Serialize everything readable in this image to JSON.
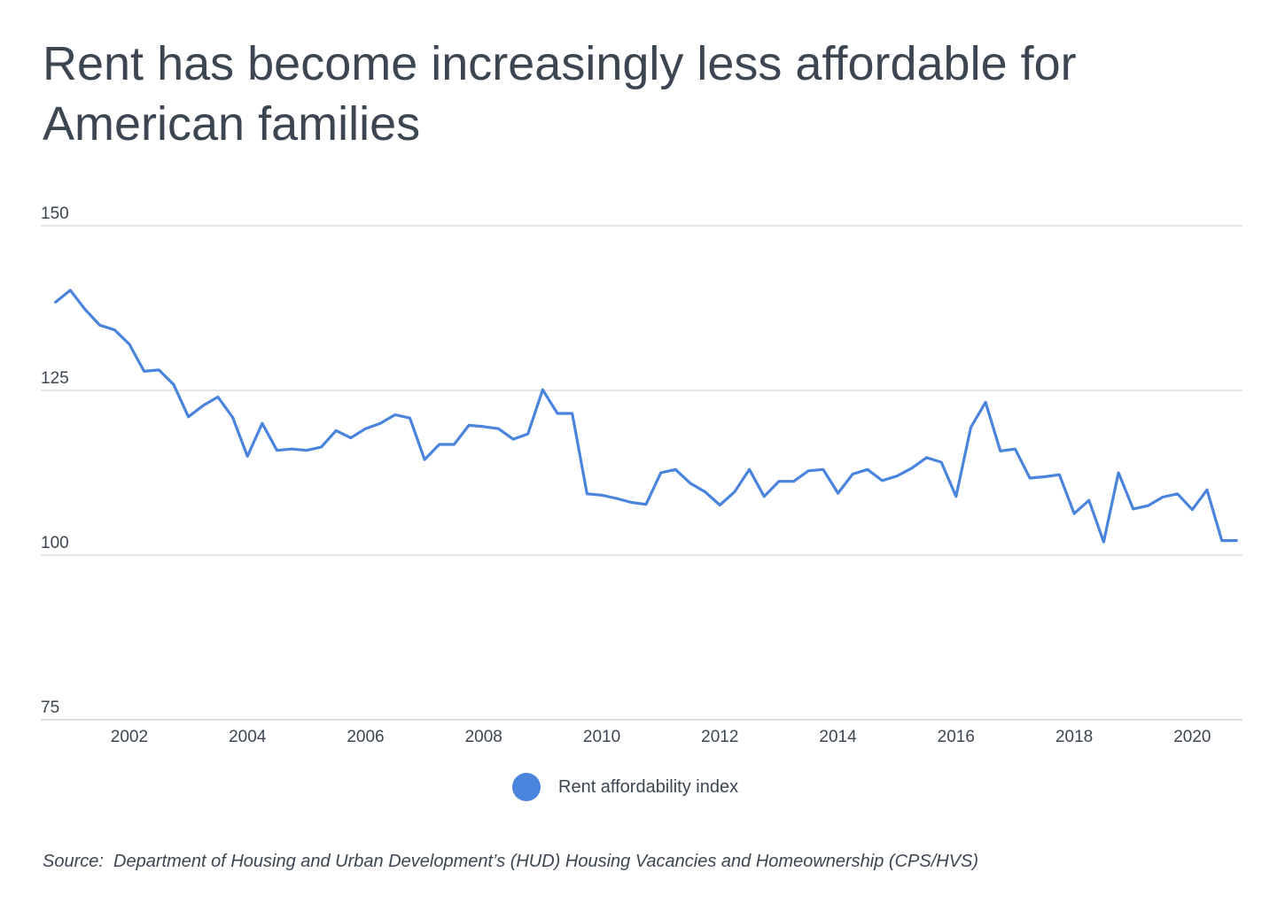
{
  "chart_data": {
    "type": "line",
    "title": "Rent has become increasingly less affordable for American families",
    "xlabel": "",
    "ylabel": "",
    "ylim": [
      75,
      150
    ],
    "yticks": [
      75,
      100,
      125,
      150
    ],
    "xticks": [
      2002,
      2004,
      2006,
      2008,
      2010,
      2012,
      2014,
      2016,
      2018,
      2020
    ],
    "xlim": [
      2000.5,
      2020.85
    ],
    "grid": true,
    "legend_position": "bottom",
    "series": [
      {
        "name": "Rent affordability index",
        "color": "#4a84dc",
        "x": [
          2000.75,
          2001.0,
          2001.25,
          2001.5,
          2001.75,
          2002.0,
          2002.25,
          2002.5,
          2002.75,
          2003.0,
          2003.25,
          2003.5,
          2003.75,
          2004.0,
          2004.25,
          2004.5,
          2004.75,
          2005.0,
          2005.25,
          2005.5,
          2005.75,
          2006.0,
          2006.25,
          2006.5,
          2006.75,
          2007.0,
          2007.25,
          2007.5,
          2007.75,
          2008.0,
          2008.25,
          2008.5,
          2008.75,
          2009.0,
          2009.25,
          2009.5,
          2009.75,
          2010.0,
          2010.25,
          2010.5,
          2010.75,
          2011.0,
          2011.25,
          2011.5,
          2011.75,
          2012.0,
          2012.25,
          2012.5,
          2012.75,
          2013.0,
          2013.25,
          2013.5,
          2013.75,
          2014.0,
          2014.25,
          2014.5,
          2014.75,
          2015.0,
          2015.25,
          2015.5,
          2015.75,
          2016.0,
          2016.25,
          2016.5,
          2016.75,
          2017.0,
          2017.25,
          2017.5,
          2017.75,
          2018.0,
          2018.25,
          2018.5,
          2018.75,
          2019.0,
          2019.25,
          2019.5,
          2019.75,
          2020.0,
          2020.25,
          2020.5,
          2020.75
        ],
        "values": [
          138.4,
          140.2,
          137.3,
          134.9,
          134.2,
          132.0,
          127.9,
          128.1,
          125.9,
          121.0,
          122.7,
          124.0,
          120.9,
          115.0,
          120.0,
          115.9,
          116.1,
          115.9,
          116.4,
          118.9,
          117.8,
          119.2,
          120.0,
          121.3,
          120.8,
          114.5,
          116.8,
          116.8,
          119.7,
          119.5,
          119.2,
          117.6,
          118.4,
          125.1,
          121.5,
          121.5,
          109.3,
          109.1,
          108.6,
          108.0,
          107.7,
          112.5,
          113.0,
          110.9,
          109.6,
          107.6,
          109.6,
          113.0,
          108.9,
          111.2,
          111.2,
          112.8,
          113.0,
          109.4,
          112.3,
          113.0,
          111.3,
          112.0,
          113.2,
          114.8,
          114.1,
          108.9,
          119.4,
          123.2,
          115.8,
          116.1,
          111.7,
          111.9,
          112.2,
          106.3,
          108.3,
          102.0,
          112.5,
          107.0,
          107.5,
          108.8,
          109.3,
          106.9,
          109.9,
          102.2,
          102.2
        ]
      }
    ]
  },
  "source": "Source:  Department of Housing and Urban Development’s (HUD) Housing Vacancies and Homeownership (CPS/HVS)"
}
